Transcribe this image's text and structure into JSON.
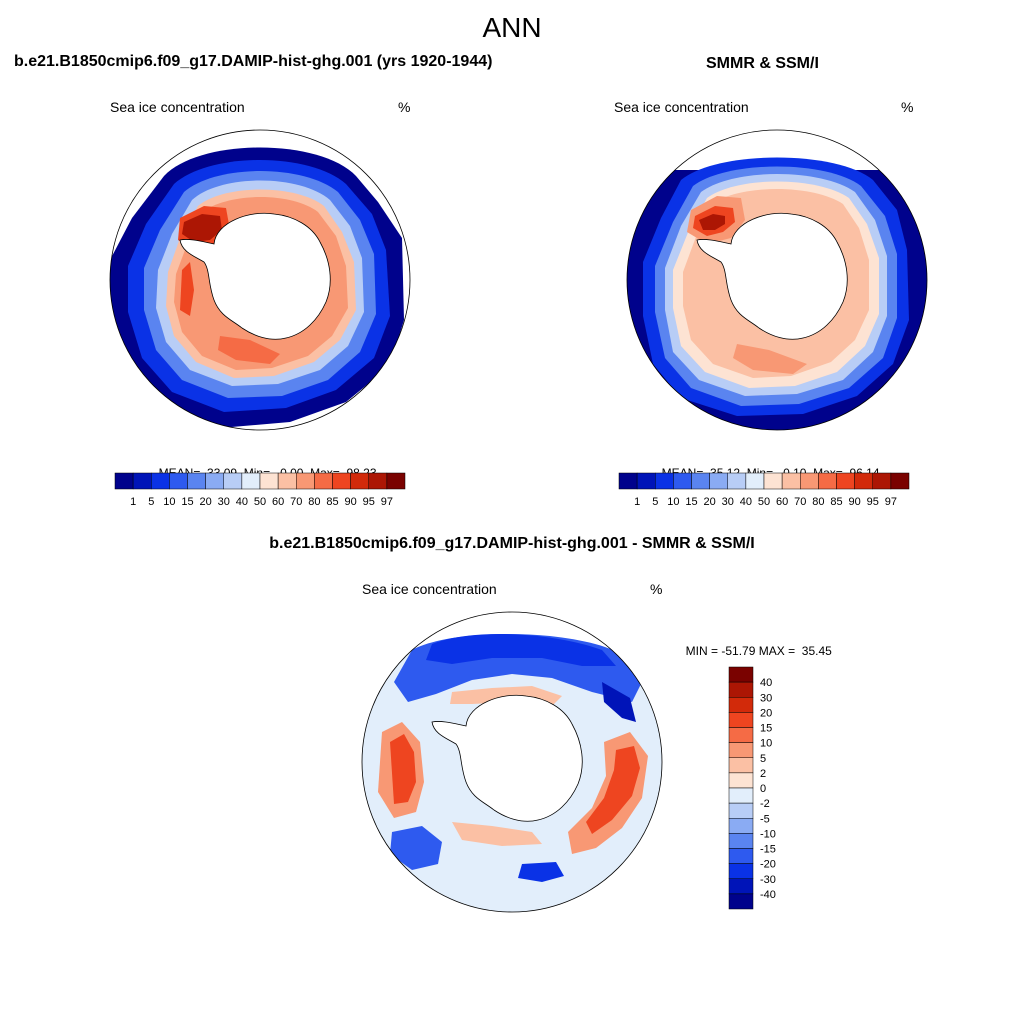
{
  "main_title": "ANN",
  "panels": [
    {
      "title": "b.e21.B1850cmip6.f09_g17.DAMIP-hist-ghg.001 (yrs 1920-1944)",
      "variable": "Sea ice concentration",
      "unit": "%",
      "stats": {
        "mean": "33.09",
        "min": "0.00",
        "max": "98.23"
      }
    },
    {
      "title": "SMMR & SSM/I",
      "variable": "Sea ice concentration",
      "unit": "%",
      "stats": {
        "mean": "35.12",
        "min": "0.10",
        "max": "96.14"
      }
    },
    {
      "title": "b.e21.B1850cmip6.f09_g17.DAMIP-hist-ghg.001 - SMMR & SSM/I",
      "variable": "Sea ice concentration",
      "unit": "%",
      "stats": {
        "min": "-51.79",
        "max": "35.45"
      }
    }
  ],
  "labels": {
    "mean_prefix": "MEAN=",
    "min_prefix": "Min=",
    "max_prefix": "Max=",
    "diff_min_prefix": "MIN =",
    "diff_max_prefix": "MAX ="
  },
  "colorbar_abs": {
    "ticks": [
      "1",
      "5",
      "10",
      "15",
      "20",
      "30",
      "40",
      "50",
      "60",
      "70",
      "80",
      "85",
      "90",
      "95",
      "97"
    ],
    "colors": [
      "#00028c",
      "#0014b8",
      "#0a32e6",
      "#2e5aef",
      "#5a84f0",
      "#8aabf3",
      "#b8cdf6",
      "#e2eefb",
      "#fde3d3",
      "#fbc0a4",
      "#f89874",
      "#f56b45",
      "#ee4520",
      "#d22a0a",
      "#ac1604",
      "#7a0200"
    ]
  },
  "colorbar_diff": {
    "ticks": [
      "40",
      "30",
      "20",
      "15",
      "10",
      "5",
      "2",
      "0",
      "-2",
      "-5",
      "-10",
      "-15",
      "-20",
      "-30",
      "-40"
    ],
    "colors": [
      "#7a0200",
      "#ac1604",
      "#d22a0a",
      "#ee4520",
      "#f56b45",
      "#f89874",
      "#fbc0a4",
      "#fde3d3",
      "#e2eefb",
      "#b8cdf6",
      "#8aabf3",
      "#5a84f0",
      "#2e5aef",
      "#0a32e6",
      "#0014b8",
      "#00028c"
    ]
  }
}
